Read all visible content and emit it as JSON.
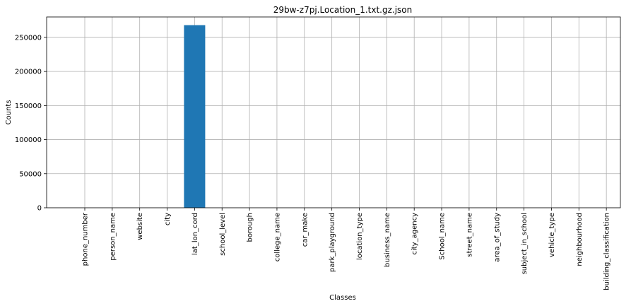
{
  "chart_data": {
    "type": "bar",
    "title": "29bw-z7pj.Location_1.txt.gz.json",
    "xlabel": "Classes",
    "ylabel": "Counts",
    "categories": [
      "phone_number",
      "person_name",
      "website",
      "city",
      "lat_lon_cord",
      "school_level",
      "borough",
      "college_name",
      "car_make",
      "park_playground",
      "location_type",
      "business_name",
      "city_agency",
      "School_name",
      "street_name",
      "area_of_study",
      "subject_in_school",
      "vehicle_type",
      "neighbourhood",
      "building_classification"
    ],
    "values": [
      0,
      0,
      0,
      0,
      268000,
      0,
      0,
      0,
      0,
      0,
      0,
      0,
      0,
      0,
      0,
      0,
      0,
      0,
      0,
      0
    ],
    "ylim": [
      0,
      280000
    ],
    "yticks": [
      0,
      50000,
      100000,
      150000,
      200000,
      250000
    ],
    "grid": true,
    "bar_color": "#1f77b4"
  }
}
